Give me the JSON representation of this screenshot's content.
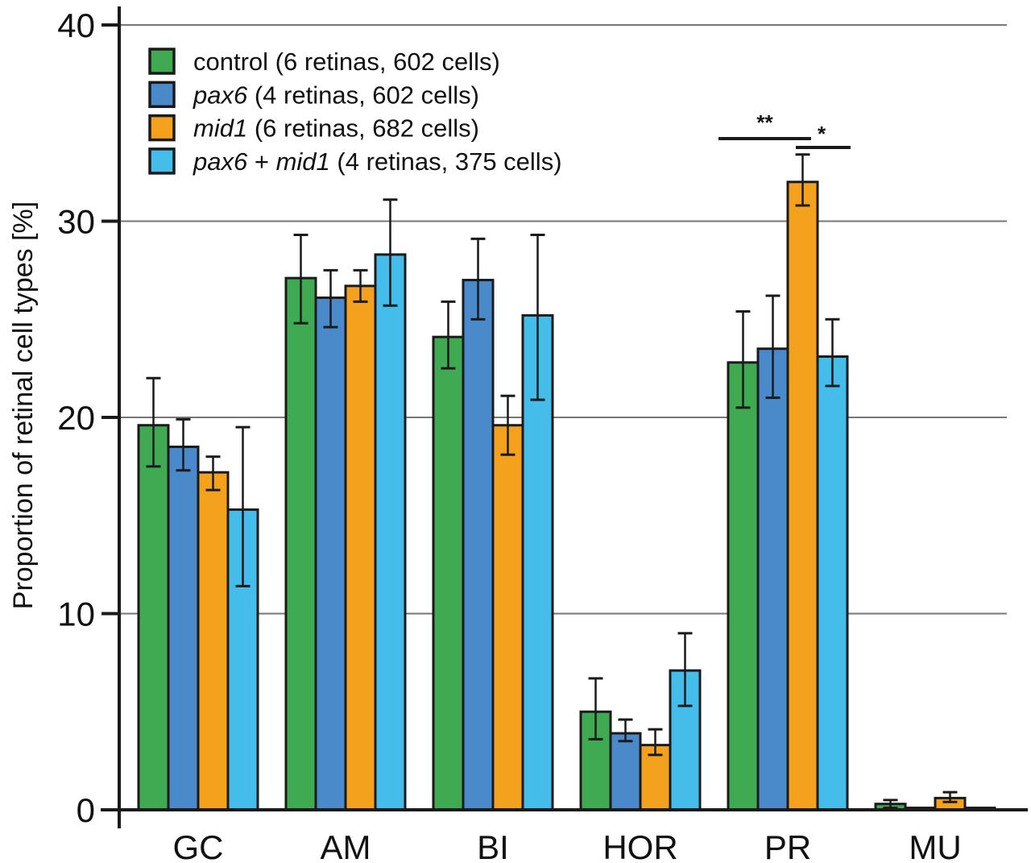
{
  "chart_data": {
    "type": "bar",
    "title": "",
    "xlabel": "",
    "ylabel": "Proportion of retinal cell types [%]",
    "ylim": [
      0,
      40
    ],
    "yticks": [
      0,
      10,
      20,
      30,
      40
    ],
    "grid": true,
    "legend_position": "top-left",
    "categories": [
      "GC",
      "AM",
      "BI",
      "HOR",
      "PR",
      "MU"
    ],
    "series": [
      {
        "name": "control",
        "name_italic": false,
        "suffix": " (6 retinas, 602 cells)",
        "color": "#3FAA52",
        "values": [
          19.6,
          27.1,
          24.1,
          5.0,
          22.8,
          0.3
        ],
        "err_upper": [
          22.0,
          29.3,
          25.9,
          6.7,
          25.4,
          0.5
        ],
        "err_lower": [
          17.5,
          24.8,
          22.5,
          3.6,
          20.5,
          0.1
        ]
      },
      {
        "name": "pax6",
        "name_italic": true,
        "suffix": " (4 retinas, 602 cells)",
        "color": "#4A8ACA",
        "values": [
          18.5,
          26.1,
          27.0,
          3.9,
          23.5,
          0.1
        ],
        "err_upper": [
          19.9,
          27.5,
          29.1,
          4.6,
          26.2,
          0.1
        ],
        "err_lower": [
          17.3,
          24.6,
          25.0,
          3.5,
          21.0,
          0.1
        ]
      },
      {
        "name": "mid1",
        "name_italic": true,
        "suffix": " (6 retinas, 682 cells)",
        "color": "#F4A21E",
        "values": [
          17.2,
          26.7,
          19.6,
          3.3,
          32.0,
          0.6
        ],
        "err_upper": [
          18.0,
          27.5,
          21.1,
          4.1,
          33.4,
          0.9
        ],
        "err_lower": [
          16.3,
          25.9,
          18.1,
          2.8,
          30.8,
          0.4
        ]
      },
      {
        "name": "pax6 + mid1",
        "name_italic": true,
        "suffix": " (4 retinas, 375 cells)",
        "color": "#45BDEB",
        "values": [
          15.3,
          28.3,
          25.2,
          7.1,
          23.1,
          0.1
        ],
        "err_upper": [
          19.5,
          31.1,
          29.3,
          9.0,
          25.0,
          0.1
        ],
        "err_lower": [
          11.4,
          25.7,
          20.9,
          5.3,
          21.6,
          0.1
        ]
      }
    ],
    "annotations": [
      {
        "category": "PR",
        "from_series": 0,
        "to_series": 2,
        "label": "**"
      },
      {
        "category": "PR",
        "from_series": 2,
        "to_series": 3,
        "label": "*"
      }
    ]
  }
}
